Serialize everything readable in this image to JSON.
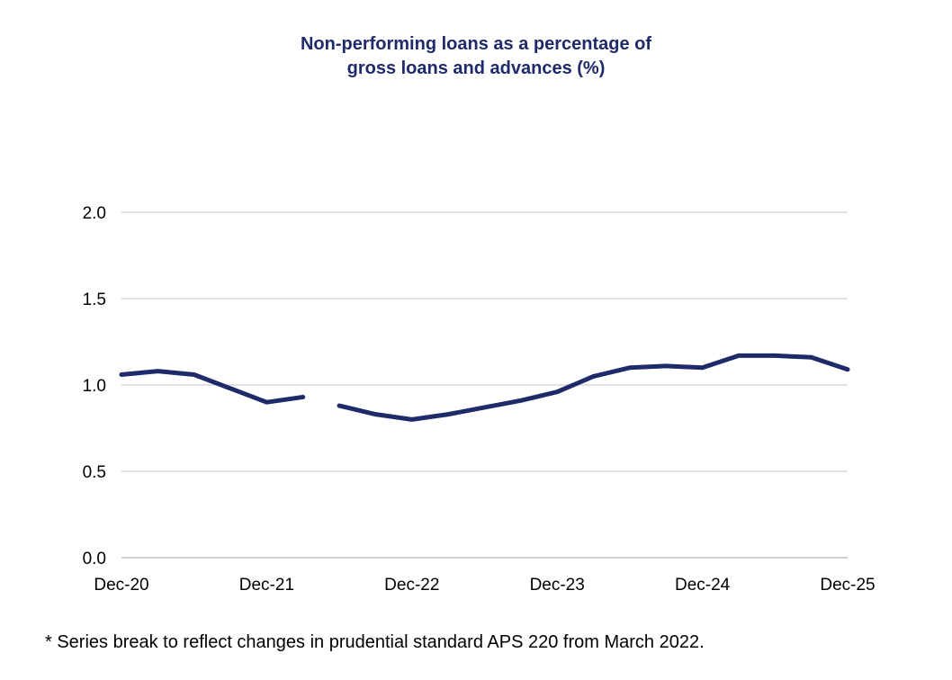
{
  "chart_data": {
    "type": "line",
    "title_line1": "Non-performing loans as a percentage of",
    "title_line2": "gross loans and advances (%)",
    "footnote": "* Series break to reflect changes in prudential standard APS 220 from March 2022.",
    "ylim": [
      0,
      2.0
    ],
    "yticks": [
      "0.0",
      "0.5",
      "1.0",
      "1.5",
      "2.0"
    ],
    "xtick_labels": [
      "Dec-20",
      "Dec-21",
      "Dec-22",
      "Dec-23",
      "Dec-24",
      "Dec-25"
    ],
    "grid": "horizontal",
    "line_color": "#1f2a6b",
    "x": [
      "Dec-20",
      "Mar-21",
      "Jun-21",
      "Sep-21",
      "Dec-21",
      "Mar-22",
      "Jun-22",
      "Sep-22",
      "Dec-22",
      "Mar-23",
      "Jun-23",
      "Sep-23",
      "Dec-23",
      "Mar-24",
      "Jun-24",
      "Sep-24",
      "Dec-24",
      "Mar-25",
      "Jun-25",
      "Sep-25",
      "Dec-25"
    ],
    "segments": [
      {
        "start": 0,
        "values": [
          1.06,
          1.08,
          1.06,
          0.98,
          0.9,
          0.93
        ]
      },
      {
        "start": 6,
        "values": [
          0.88,
          0.83,
          0.8,
          0.83,
          0.87,
          0.91,
          0.96,
          1.05,
          1.1,
          1.11,
          1.1,
          1.17,
          1.17,
          1.16,
          1.09
        ]
      }
    ]
  }
}
